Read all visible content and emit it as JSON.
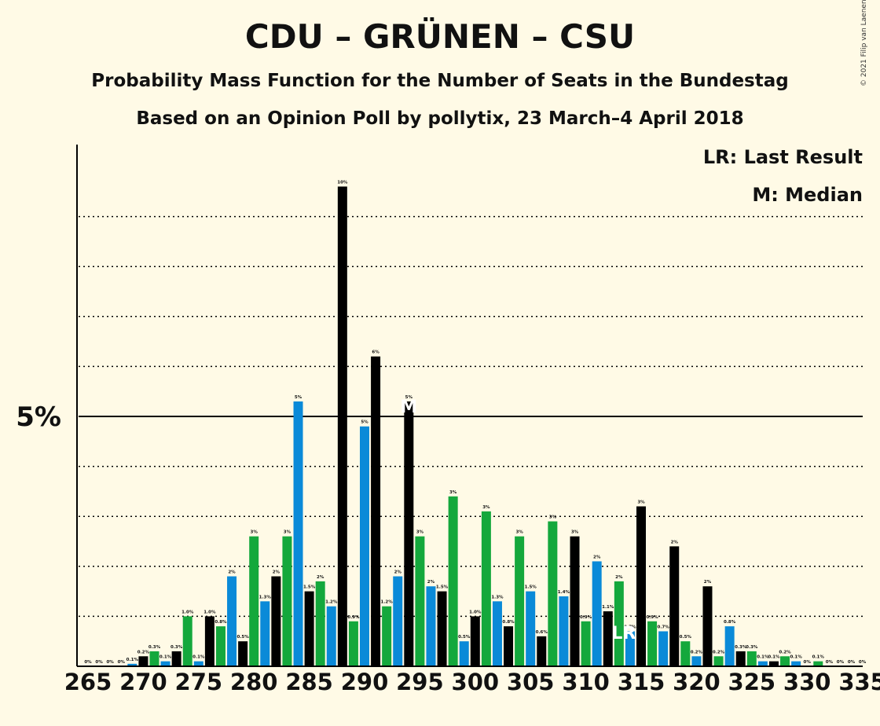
{
  "header": {
    "title": "CDU – GRÜNEN – CSU",
    "subtitle": "Probability Mass Function for the Number of Seats in the Bundestag",
    "source": "Based on an Opinion Poll by pollytix, 23 March–4 April 2018",
    "copyright": "© 2021 Filip van Laenen"
  },
  "legend": {
    "lr": "LR: Last Result",
    "m": "M: Median"
  },
  "colors": {
    "background": "#fffae6",
    "blue": "#0a8ad8",
    "green": "#14a83c",
    "black": "#000000"
  },
  "chart_data": {
    "type": "bar",
    "x": [
      265,
      266,
      267,
      268,
      269,
      270,
      271,
      272,
      273,
      274,
      275,
      276,
      277,
      278,
      279,
      280,
      281,
      282,
      283,
      284,
      285,
      286,
      287,
      288,
      289,
      290,
      291,
      292,
      293,
      294,
      295,
      296,
      297,
      298,
      299,
      300,
      301,
      302,
      303,
      304,
      305,
      306,
      307,
      308,
      309,
      310,
      311,
      312,
      313,
      314,
      315,
      316,
      317,
      318,
      319,
      320,
      321,
      322,
      323,
      324,
      325,
      326,
      327,
      328,
      329,
      330,
      331,
      332,
      333,
      334,
      335
    ],
    "values": [
      0.0,
      0.0,
      0.0,
      0.0,
      0.05,
      0.2,
      0.3,
      0.1,
      0.3,
      1.0,
      0.1,
      1.0,
      0.8,
      1.8,
      0.5,
      2.6,
      1.3,
      1.8,
      2.6,
      5.3,
      1.5,
      1.7,
      1.2,
      9.6,
      0.9,
      4.8,
      6.2,
      1.2,
      1.8,
      5.3,
      2.6,
      1.6,
      1.5,
      3.4,
      0.5,
      1.0,
      3.1,
      1.3,
      0.8,
      2.6,
      1.5,
      0.6,
      2.9,
      1.4,
      2.6,
      0.9,
      2.1,
      1.1,
      1.7,
      0.7,
      3.2,
      0.9,
      0.7,
      2.4,
      0.5,
      0.2,
      1.6,
      0.2,
      0.8,
      0.3,
      0.3,
      0.1,
      0.1,
      0.2,
      0.1,
      0.0,
      0.1,
      0.0,
      0.0,
      0.0,
      0.0
    ],
    "labels": [
      "0%",
      "0%",
      "0%",
      "0%",
      "0.1%",
      "0.2%",
      "0.3%",
      "0.1%",
      "0.3%",
      "1.0%",
      "0.1%",
      "1.0%",
      "0.8%",
      "2%",
      "0.5%",
      "3%",
      "1.3%",
      "2%",
      "3%",
      "5%",
      "1.5%",
      "2%",
      "1.2%",
      "10%",
      "0.9%",
      "5%",
      "6%",
      "1.2%",
      "2%",
      "5%",
      "3%",
      "2%",
      "1.5%",
      "3%",
      "0.5%",
      "1.0%",
      "3%",
      "1.3%",
      "0.8%",
      "3%",
      "1.5%",
      "0.6%",
      "3%",
      "1.4%",
      "3%",
      "0.9%",
      "2%",
      "1.1%",
      "2%",
      "0.7%",
      "3%",
      "0.9%",
      "0.7%",
      "2%",
      "0.5%",
      "0.2%",
      "2%",
      "0.2%",
      "0.8%",
      "0.3%",
      "0.3%",
      "0.1%",
      "0.1%",
      "0.2%",
      "0.1%",
      "0%",
      "0.1%",
      "0%",
      "0%",
      "0%",
      "0%"
    ],
    "bar_colors": [
      "blue",
      "green",
      "black",
      "blue",
      "blue",
      "black",
      "green",
      "blue",
      "black",
      "green",
      "blue",
      "black",
      "green",
      "blue",
      "black",
      "green",
      "blue",
      "black",
      "green",
      "blue",
      "black",
      "green",
      "blue",
      "black",
      "green",
      "blue",
      "black",
      "green",
      "blue",
      "black",
      "green",
      "blue",
      "black",
      "green",
      "blue",
      "black",
      "green",
      "blue",
      "black",
      "green",
      "blue",
      "black",
      "green",
      "blue",
      "black",
      "green",
      "blue",
      "black",
      "green",
      "blue",
      "black",
      "green",
      "blue",
      "black",
      "green",
      "blue",
      "black",
      "green",
      "blue",
      "black",
      "green",
      "blue",
      "black",
      "green",
      "blue",
      "black",
      "green",
      "blue",
      "black",
      "green",
      "blue"
    ],
    "xticks": [
      265,
      270,
      275,
      280,
      285,
      290,
      295,
      300,
      305,
      310,
      315,
      320,
      325,
      330,
      335
    ],
    "ytick_label": "5%",
    "ytick_value": 5,
    "gridlines": [
      1,
      2,
      3,
      4,
      6,
      7,
      8,
      9
    ],
    "ylim": [
      0,
      10.4
    ],
    "median": {
      "x": 294,
      "label": "M"
    },
    "last_result": {
      "x": 313,
      "label": "LR"
    }
  }
}
